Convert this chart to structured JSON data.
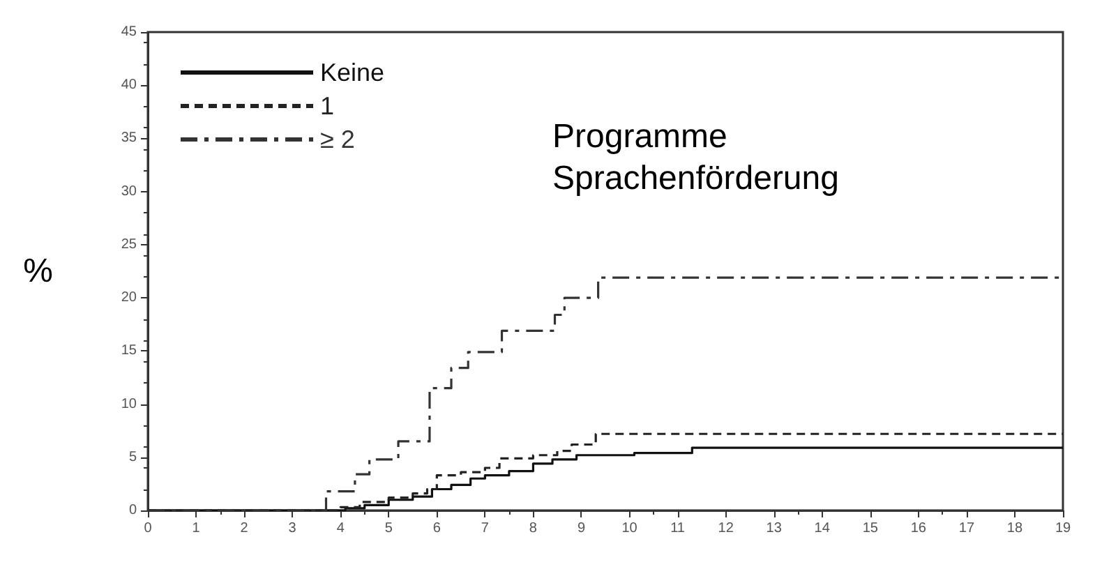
{
  "chart_data": {
    "type": "step",
    "title": "Programme\nSprachenförderung",
    "ylabel": "%",
    "xlim": [
      0,
      19
    ],
    "xticks": [
      0,
      1,
      2,
      3,
      4,
      5,
      6,
      7,
      8,
      9,
      10,
      11,
      12,
      13,
      14,
      15,
      16,
      17,
      18,
      19
    ],
    "ylim": [
      0,
      45
    ],
    "yticks": [
      0,
      5,
      10,
      15,
      20,
      25,
      30,
      35,
      40,
      45
    ],
    "grid": false,
    "legend": "top left",
    "series": [
      {
        "name": "Keine",
        "color": "#111111",
        "line_style": "solid",
        "x": [
          0,
          4.1,
          4.5,
          5.0,
          5.5,
          5.9,
          6.3,
          6.7,
          7.0,
          7.5,
          8.0,
          8.4,
          8.9,
          10.1,
          11.3,
          19
        ],
        "values": [
          0,
          0.2,
          0.5,
          1.0,
          1.3,
          2.0,
          2.4,
          3.0,
          3.3,
          3.7,
          4.4,
          4.8,
          5.2,
          5.4,
          5.9,
          5.9
        ]
      },
      {
        "name": "1",
        "color": "#222222",
        "line_style": "dashed",
        "x": [
          0,
          4.0,
          4.4,
          5.0,
          5.5,
          5.8,
          6.0,
          6.5,
          7.0,
          7.3,
          8.0,
          8.5,
          8.8,
          9.3,
          19
        ],
        "values": [
          0,
          0.3,
          0.8,
          1.2,
          1.6,
          2.0,
          3.3,
          3.6,
          4.0,
          4.9,
          5.2,
          5.6,
          6.2,
          7.2,
          7.2
        ]
      },
      {
        "name": "≥ 2",
        "color": "#333333",
        "line_style": "dashdot",
        "x": [
          0,
          3.7,
          4.3,
          4.6,
          5.2,
          5.85,
          6.3,
          6.65,
          7.35,
          8.45,
          8.65,
          9.35,
          19
        ],
        "values": [
          0,
          1.8,
          3.4,
          4.8,
          6.5,
          11.5,
          13.4,
          14.9,
          16.9,
          18.4,
          20,
          21.9,
          21.9
        ]
      }
    ]
  }
}
